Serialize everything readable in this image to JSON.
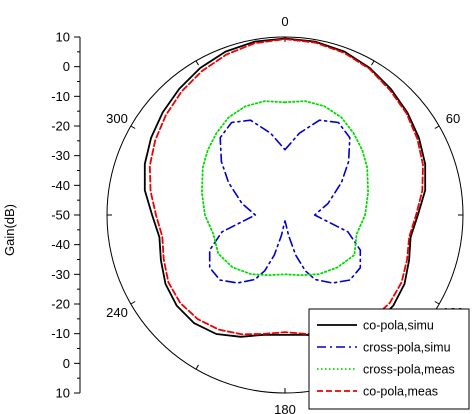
{
  "chart_data": {
    "type": "polar-line",
    "ylabel": "Gain(dB)",
    "radial_range": [
      -50,
      10
    ],
    "radial_ticks": [
      10,
      0,
      -10,
      -20,
      -30,
      -40,
      -50
    ],
    "radial_tick_labels_upper": [
      "10",
      "0",
      "-10",
      "-20",
      "-30",
      "-40",
      "-50"
    ],
    "radial_tick_labels_lower": [
      "-40",
      "-30",
      "-20",
      "-10",
      "0",
      "10"
    ],
    "angle_labels": [
      {
        "deg": 0,
        "label": "0"
      },
      {
        "deg": 60,
        "label": "60"
      },
      {
        "deg": 120,
        "label": "120"
      },
      {
        "deg": 180,
        "label": "180"
      },
      {
        "deg": 240,
        "label": "240"
      },
      {
        "deg": 300,
        "label": "300"
      }
    ],
    "legend_position": "bottom-right",
    "series": [
      {
        "name": "co-pola,simu",
        "color": "#000000",
        "style": "solid",
        "angles": [
          0,
          10,
          20,
          30,
          40,
          50,
          60,
          70,
          80,
          90,
          100,
          110,
          120,
          130,
          140,
          150,
          160,
          170,
          180,
          190,
          200,
          210,
          220,
          230,
          240,
          250,
          260,
          270,
          280,
          290,
          300,
          310,
          320,
          330,
          340,
          350,
          360
        ],
        "values": [
          9.5,
          9.3,
          8.6,
          7.2,
          5.5,
          3.8,
          2.1,
          0.3,
          -2,
          -5.2,
          -7,
          -5.5,
          -3.5,
          -2.4,
          -2.4,
          -3.7,
          -6.3,
          -9,
          -9.6,
          -9,
          -6.3,
          -3.7,
          -2.4,
          -2.4,
          -3.5,
          -5.5,
          -7,
          -5.2,
          -2,
          0.3,
          2.1,
          3.8,
          5.5,
          7.2,
          8.6,
          9.3,
          9.5
        ]
      },
      {
        "name": "cross-pola,simu",
        "color": "#0000cc",
        "style": "dashdot",
        "angles": [
          0,
          10,
          20,
          30,
          40,
          50,
          60,
          75,
          90,
          105,
          115,
          125,
          135,
          145,
          155,
          160,
          165,
          170,
          175,
          180,
          185,
          190,
          195,
          200,
          205,
          215,
          225,
          235,
          245,
          255,
          270,
          285,
          300,
          310,
          320,
          330,
          340,
          350,
          360
        ],
        "values": [
          -28,
          -22,
          -16,
          -14,
          -16,
          -22,
          -28,
          -35,
          -40,
          -28,
          -22,
          -19,
          -19,
          -22,
          -26,
          -30,
          -36,
          -43,
          -47,
          -48,
          -47,
          -43,
          -36,
          -30,
          -26,
          -22,
          -19,
          -19,
          -22,
          -28,
          -40,
          -35,
          -28,
          -22,
          -16,
          -14,
          -16,
          -22,
          -28
        ]
      },
      {
        "name": "cross-pola,meas",
        "color": "#00dd00",
        "style": "dotted",
        "angles": [
          0,
          10,
          20,
          30,
          40,
          50,
          60,
          75,
          90,
          105,
          120,
          135,
          150,
          165,
          180,
          195,
          210,
          225,
          240,
          255,
          270,
          285,
          300,
          310,
          320,
          330,
          340,
          350,
          360
        ],
        "values": [
          -12,
          -11,
          -11,
          -12,
          -14,
          -16,
          -18,
          -21,
          -23,
          -25,
          -23,
          -25,
          -27,
          -29,
          -30,
          -29,
          -27,
          -25,
          -24,
          -25,
          -23,
          -21,
          -18,
          -16,
          -14,
          -12,
          -11,
          -11,
          -12
        ]
      },
      {
        "name": "co-pola,meas",
        "color": "#ee0000",
        "style": "dashed",
        "angles": [
          0,
          10,
          20,
          30,
          40,
          50,
          60,
          70,
          80,
          90,
          100,
          110,
          120,
          130,
          140,
          150,
          160,
          170,
          180,
          190,
          200,
          210,
          220,
          230,
          240,
          250,
          260,
          270,
          280,
          290,
          300,
          310,
          320,
          330,
          340,
          350,
          360
        ],
        "values": [
          9.3,
          9,
          8.2,
          6.9,
          5,
          3.4,
          1.5,
          -0.5,
          -3,
          -5.8,
          -7.5,
          -6.2,
          -4.6,
          -3.9,
          -4.2,
          -5.4,
          -7.2,
          -9.3,
          -10.5,
          -9.3,
          -7.2,
          -5.4,
          -4.2,
          -3.9,
          -4.6,
          -6.5,
          -8,
          -6.5,
          -4,
          -1.5,
          0.5,
          2.4,
          4.3,
          6,
          7.6,
          8.8,
          9.3
        ]
      }
    ]
  }
}
